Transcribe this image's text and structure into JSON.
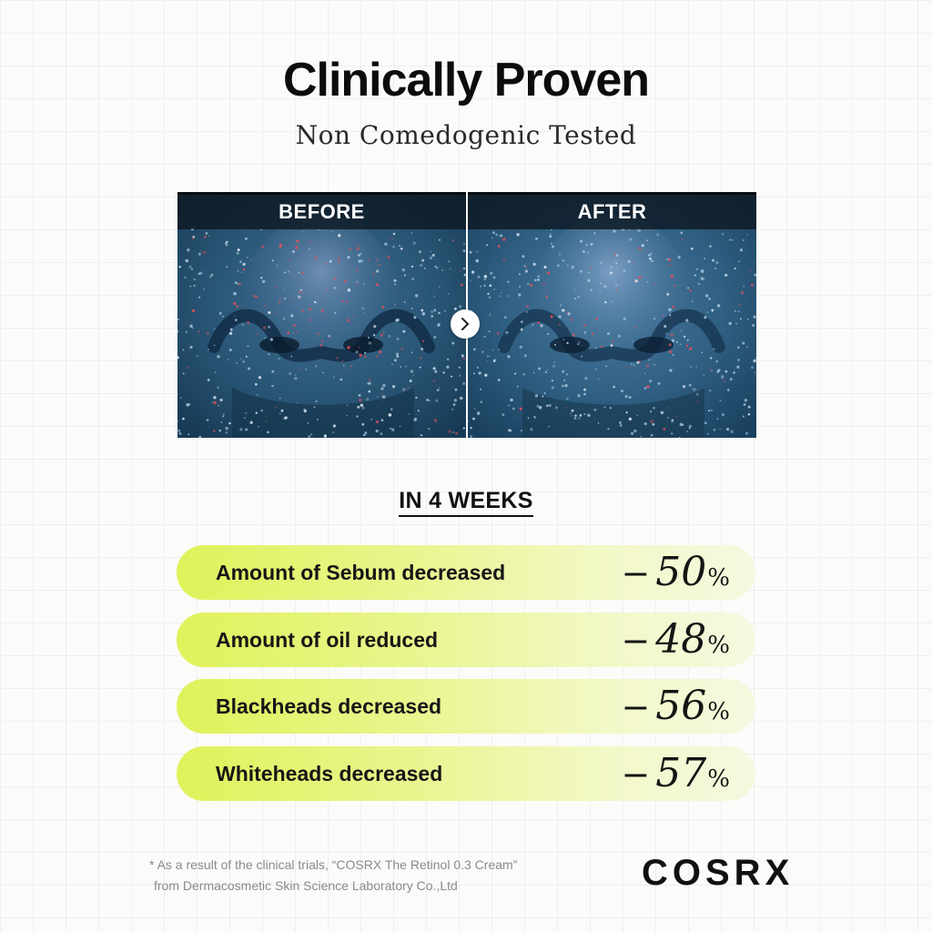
{
  "header": {
    "title": "Clinically Proven",
    "subtitle": "Non Comedogenic Tested"
  },
  "comparison": {
    "before_label": "BEFORE",
    "after_label": "AFTER",
    "arrow_icon": "chevron-right-icon"
  },
  "results": {
    "heading": "IN 4 WEEKS",
    "items": [
      {
        "label": "Amount of Sebum decreased",
        "sign": "−",
        "value": "50",
        "unit": "%"
      },
      {
        "label": "Amount of oil reduced",
        "sign": "−",
        "value": "48",
        "unit": "%"
      },
      {
        "label": "Blackheads decreased",
        "sign": "−",
        "value": "56",
        "unit": "%"
      },
      {
        "label": "Whiteheads decreased",
        "sign": "−",
        "value": "57",
        "unit": "%"
      }
    ]
  },
  "footer": {
    "footnote_line1": "* As a result of the clinical trials, “COSRX The Retinol 0.3 Cream”",
    "footnote_line2": "from Dermacosmetic Skin Science Laboratory Co.,Ltd",
    "brand": "COSRX"
  },
  "colors": {
    "pill_start": "#dff25a",
    "pill_end": "#f6f8e0",
    "photo_base": "#1d3f5c",
    "spot_red": "#e0505a"
  }
}
